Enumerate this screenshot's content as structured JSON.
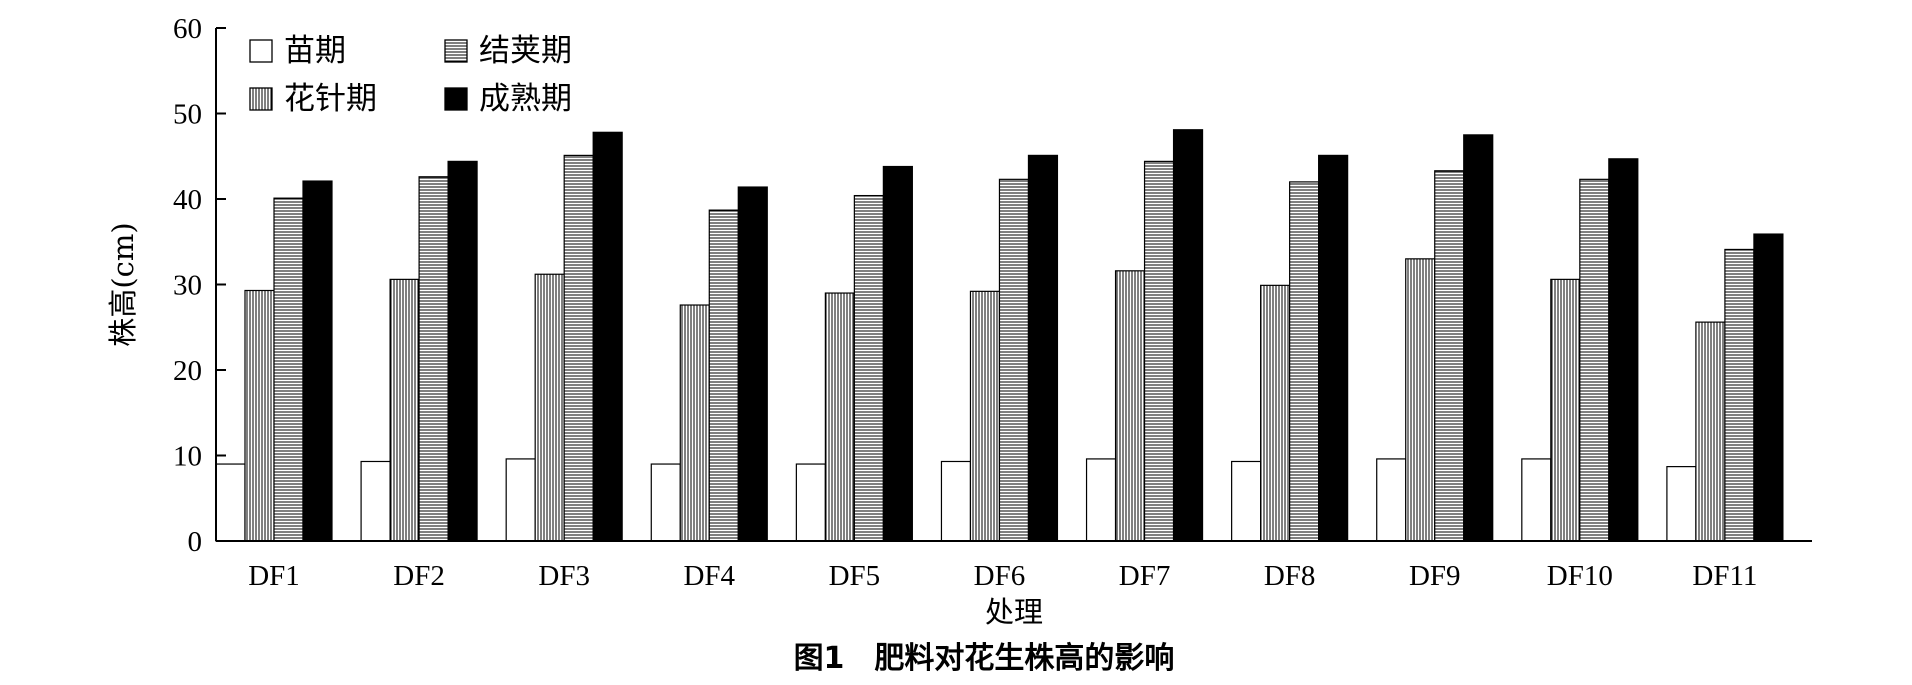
{
  "chart_data": {
    "type": "bar",
    "categories": [
      "DF1",
      "DF2",
      "DF3",
      "DF4",
      "DF5",
      "DF6",
      "DF7",
      "DF8",
      "DF9",
      "DF10",
      "DF11"
    ],
    "series": [
      {
        "name": "苗期",
        "values": [
          9.0,
          9.3,
          9.6,
          9.0,
          9.0,
          9.3,
          9.6,
          9.3,
          9.6,
          9.6,
          8.7
        ],
        "fill": "#ffffff",
        "pattern": "none"
      },
      {
        "name": "花针期",
        "values": [
          29.3,
          30.6,
          31.2,
          27.6,
          29.0,
          29.2,
          31.6,
          29.9,
          33.0,
          30.6,
          25.6
        ],
        "fill": "#ffffff",
        "pattern": "vertical-lines"
      },
      {
        "name": "结荚期",
        "values": [
          40.1,
          42.6,
          45.1,
          38.7,
          40.4,
          42.3,
          44.4,
          42.0,
          43.3,
          42.3,
          34.1
        ],
        "fill": "#ffffff",
        "pattern": "horizontal-lines"
      },
      {
        "name": "成熟期",
        "values": [
          42.1,
          44.4,
          47.8,
          41.4,
          43.8,
          45.1,
          48.1,
          45.1,
          47.5,
          44.7,
          35.9
        ],
        "fill": "#000000",
        "pattern": "solid"
      }
    ],
    "xlabel": "处理",
    "ylabel": "株高(cm)",
    "ylim": [
      0,
      60
    ],
    "yticks": [
      0,
      10,
      20,
      30,
      40,
      50,
      60
    ],
    "grid": false,
    "legend": {
      "placement": "top-left",
      "columns": 2
    }
  },
  "caption": "图1　肥料对花生株高的影响"
}
